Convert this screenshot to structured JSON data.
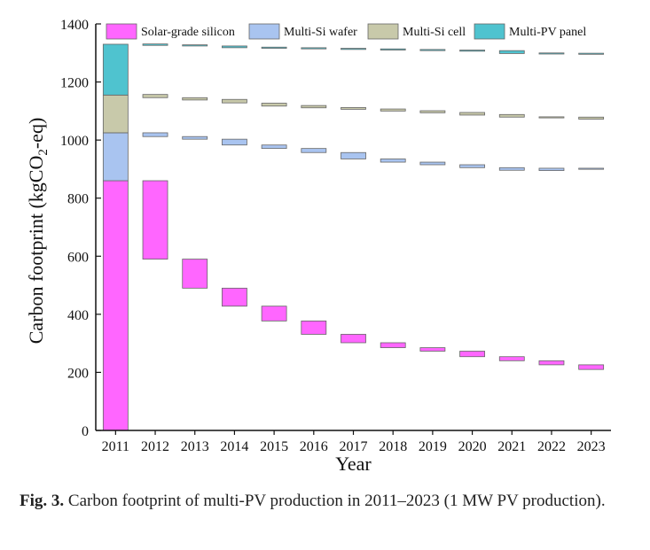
{
  "chart_data": {
    "type": "bar",
    "subtype": "waterfall",
    "title": "",
    "xlabel": "Year",
    "ylabel": "Carbon footprint (kgCO2-eq)",
    "ylabel_parts": {
      "pre": "Carbon footprint (kgCO",
      "sub": "2",
      "post": "-eq)"
    },
    "ylim": [
      0,
      1400
    ],
    "yticks": [
      0,
      200,
      400,
      600,
      800,
      1000,
      1200,
      1400
    ],
    "categories": [
      "2011",
      "2012",
      "2013",
      "2014",
      "2015",
      "2016",
      "2017",
      "2018",
      "2019",
      "2020",
      "2021",
      "2022",
      "2023"
    ],
    "legend_position": "top",
    "legend": [
      {
        "name": "Solar-grade silicon",
        "color": "#ff66ff"
      },
      {
        "name": "Multi-Si wafer",
        "color": "#a9c4f0"
      },
      {
        "name": "Multi-Si cell",
        "color": "#c8c9aa"
      },
      {
        "name": "Multi-PV panel",
        "color": "#4fc3cf"
      }
    ],
    "base_2011": {
      "Solar-grade silicon": 860,
      "Multi-Si wafer": 165,
      "Multi-Si cell": 130,
      "Multi-PV panel": 175
    },
    "segments": [
      {
        "series": "Solar-grade silicon",
        "bars": [
          [
            2012,
            590,
            860
          ],
          [
            2013,
            490,
            590
          ],
          [
            2014,
            428,
            490
          ],
          [
            2015,
            377,
            428
          ],
          [
            2016,
            331,
            377
          ],
          [
            2017,
            302,
            331
          ],
          [
            2018,
            285,
            302
          ],
          [
            2019,
            273,
            285
          ],
          [
            2020,
            254,
            273
          ],
          [
            2021,
            240,
            254
          ],
          [
            2022,
            226,
            240
          ],
          [
            2023,
            210,
            226
          ]
        ]
      },
      {
        "series": "Multi-Si wafer",
        "bars": [
          [
            2012,
            1012,
            1025
          ],
          [
            2013,
            1003,
            1012
          ],
          [
            2014,
            983,
            1003
          ],
          [
            2015,
            971,
            983
          ],
          [
            2016,
            957,
            971
          ],
          [
            2017,
            935,
            957
          ],
          [
            2018,
            924,
            935
          ],
          [
            2019,
            915,
            924
          ],
          [
            2020,
            905,
            915
          ],
          [
            2021,
            896,
            905
          ],
          [
            2022,
            895,
            903
          ],
          [
            2023,
            900,
            903
          ]
        ]
      },
      {
        "series": "Multi-Si cell",
        "bars": [
          [
            2012,
            1146,
            1157
          ],
          [
            2013,
            1138,
            1146
          ],
          [
            2014,
            1128,
            1140
          ],
          [
            2015,
            1117,
            1127
          ],
          [
            2016,
            1111,
            1119
          ],
          [
            2017,
            1106,
            1112
          ],
          [
            2018,
            1100,
            1107
          ],
          [
            2019,
            1094,
            1101
          ],
          [
            2020,
            1086,
            1095
          ],
          [
            2021,
            1079,
            1088
          ],
          [
            2022,
            1077,
            1080
          ],
          [
            2023,
            1072,
            1079
          ]
        ]
      },
      {
        "series": "Multi-PV panel",
        "bars": [
          [
            2012,
            1326,
            1331
          ],
          [
            2013,
            1324,
            1328
          ],
          [
            2014,
            1318,
            1324
          ],
          [
            2015,
            1316,
            1320
          ],
          [
            2016,
            1314,
            1318
          ],
          [
            2017,
            1312,
            1316
          ],
          [
            2018,
            1310,
            1314
          ],
          [
            2019,
            1308,
            1312
          ],
          [
            2020,
            1306,
            1310
          ],
          [
            2021,
            1298,
            1308
          ],
          [
            2022,
            1298,
            1300
          ],
          [
            2023,
            1297,
            1299
          ]
        ]
      }
    ]
  },
  "caption": {
    "label": "Fig. 3.",
    "text": "Carbon footprint of multi-PV production in 2011–2023 (1 MW PV production)."
  }
}
